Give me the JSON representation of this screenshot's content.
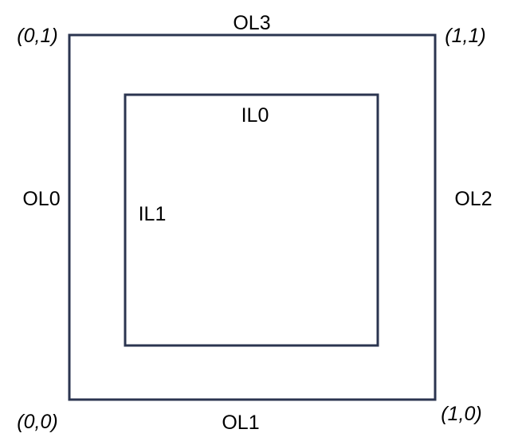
{
  "colors": {
    "stroke": "#2b3550",
    "text": "#000000",
    "background": "#ffffff"
  },
  "outer_square": {
    "labels": {
      "left": "OL0",
      "bottom": "OL1",
      "right": "OL2",
      "top": "OL3"
    }
  },
  "inner_square": {
    "labels": {
      "top": "IL0",
      "left": "IL1"
    }
  },
  "corners": {
    "top_left": "(0,1)",
    "top_right": "(1,1)",
    "bottom_left": "(0,0)",
    "bottom_right": "(1,0)"
  }
}
